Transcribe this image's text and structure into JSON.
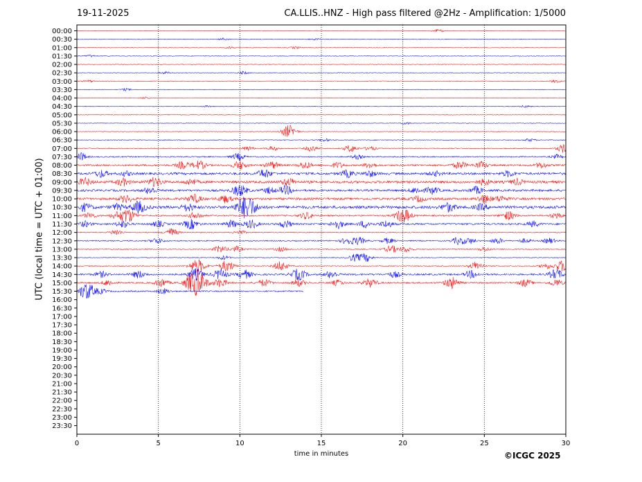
{
  "header": {
    "date": "19-11-2025",
    "title": "CA.LLIS..HNZ - High pass filtered @2Hz - Amplification: 1/5000"
  },
  "footer": {
    "copyright": "©ICGC 2025"
  },
  "chart_data": {
    "type": "line",
    "title": "CA.LLIS..HNZ - High pass filtered @2Hz - Amplification: 1/5000",
    "xlabel": "time in minutes",
    "ylabel": "UTC (local time = UTC + 01:00)",
    "xlim": [
      0,
      30
    ],
    "x_ticks": [
      0,
      5,
      10,
      15,
      20,
      25,
      30
    ],
    "grid": "vertical dotted lines at x ticks",
    "colors": {
      "odd_hour_trace": "#ff0000",
      "half_hour_trace": "#0000ff",
      "frame": "#000000"
    },
    "row_labels": [
      "00:00",
      "00:30",
      "01:00",
      "01:30",
      "02:00",
      "02:30",
      "03:00",
      "03:30",
      "04:00",
      "04:30",
      "05:00",
      "05:30",
      "06:00",
      "06:30",
      "07:00",
      "07:30",
      "08:00",
      "08:30",
      "09:00",
      "09:30",
      "10:00",
      "10:30",
      "11:00",
      "11:30",
      "12:00",
      "12:30",
      "13:00",
      "13:30",
      "14:00",
      "14:30",
      "15:00",
      "15:30",
      "16:00",
      "16:30",
      "17:00",
      "17:30",
      "18:00",
      "18:30",
      "19:00",
      "19:30",
      "20:00",
      "20:30",
      "21:00",
      "21:30",
      "22:00",
      "22:30",
      "23:00",
      "23:30"
    ],
    "traces": [
      {
        "row": "00:00",
        "color": "red",
        "end_min": 30,
        "noise": 0.4,
        "bursts": [
          [
            22.2,
            2
          ]
        ]
      },
      {
        "row": "00:30",
        "color": "blue",
        "end_min": 30,
        "noise": 0.4,
        "bursts": [
          [
            9,
            1.5
          ],
          [
            14.6,
            1.5
          ]
        ]
      },
      {
        "row": "01:00",
        "color": "red",
        "end_min": 30,
        "noise": 0.4,
        "bursts": [
          [
            9.4,
            1.5
          ],
          [
            13.4,
            1.5
          ]
        ]
      },
      {
        "row": "01:30",
        "color": "blue",
        "end_min": 30,
        "noise": 0.4,
        "bursts": [
          [
            0.8,
            1.5
          ]
        ]
      },
      {
        "row": "02:00",
        "color": "red",
        "end_min": 30,
        "noise": 0.4,
        "bursts": []
      },
      {
        "row": "02:30",
        "color": "blue",
        "end_min": 30,
        "noise": 0.4,
        "bursts": [
          [
            5.4,
            1.5
          ],
          [
            10.2,
            2
          ]
        ]
      },
      {
        "row": "03:00",
        "color": "red",
        "end_min": 30,
        "noise": 0.4,
        "bursts": [
          [
            0.7,
            1.5
          ],
          [
            29.4,
            2
          ]
        ]
      },
      {
        "row": "03:30",
        "color": "blue",
        "end_min": 30,
        "noise": 0.4,
        "bursts": [
          [
            3,
            1.5
          ]
        ]
      },
      {
        "row": "04:00",
        "color": "red",
        "end_min": 30,
        "noise": 0.4,
        "bursts": [
          [
            4.2,
            1.5
          ]
        ]
      },
      {
        "row": "04:30",
        "color": "blue",
        "end_min": 30,
        "noise": 0.4,
        "bursts": [
          [
            8,
            1
          ],
          [
            27.5,
            1.5
          ]
        ]
      },
      {
        "row": "05:00",
        "color": "red",
        "end_min": 30,
        "noise": 0.4,
        "bursts": []
      },
      {
        "row": "05:30",
        "color": "blue",
        "end_min": 30,
        "noise": 0.4,
        "bursts": [
          [
            20.2,
            1.5
          ]
        ]
      },
      {
        "row": "06:00",
        "color": "red",
        "end_min": 30,
        "noise": 0.4,
        "bursts": [
          [
            13,
            9
          ]
        ]
      },
      {
        "row": "06:30",
        "color": "blue",
        "end_min": 30,
        "noise": 0.5,
        "bursts": [
          [
            15.2,
            2
          ],
          [
            27.8,
            2
          ]
        ]
      },
      {
        "row": "07:00",
        "color": "red",
        "end_min": 30,
        "noise": 0.6,
        "bursts": [
          [
            10.5,
            3
          ],
          [
            12,
            3
          ],
          [
            14.4,
            4
          ],
          [
            16.8,
            5
          ],
          [
            18,
            3
          ],
          [
            29.9,
            6
          ]
        ]
      },
      {
        "row": "07:30",
        "color": "blue",
        "end_min": 30,
        "noise": 0.8,
        "bursts": [
          [
            0.2,
            6
          ],
          [
            9.9,
            5
          ],
          [
            17.2,
            3
          ],
          [
            29.5,
            3
          ]
        ]
      },
      {
        "row": "08:00",
        "color": "red",
        "end_min": 30,
        "noise": 1.2,
        "bursts": [
          [
            6.5,
            5
          ],
          [
            7.5,
            6
          ],
          [
            10,
            6
          ],
          [
            12,
            5
          ],
          [
            14,
            5
          ],
          [
            16,
            4
          ],
          [
            18,
            4
          ],
          [
            23.5,
            5
          ],
          [
            24.8,
            5
          ],
          [
            28.5,
            4
          ]
        ]
      },
      {
        "row": "08:30",
        "color": "blue",
        "end_min": 30,
        "noise": 1.6,
        "bursts": [
          [
            1.5,
            5
          ],
          [
            3,
            3
          ],
          [
            11.5,
            6
          ],
          [
            16.6,
            5
          ],
          [
            18,
            4
          ],
          [
            22,
            3
          ],
          [
            26.5,
            4
          ]
        ]
      },
      {
        "row": "09:00",
        "color": "red",
        "end_min": 30,
        "noise": 1.8,
        "bursts": [
          [
            0.5,
            5
          ],
          [
            2.8,
            5
          ],
          [
            4.8,
            6
          ],
          [
            7,
            4
          ],
          [
            13,
            5
          ],
          [
            25,
            4
          ],
          [
            27,
            4
          ]
        ]
      },
      {
        "row": "09:30",
        "color": "blue",
        "end_min": 30,
        "noise": 1.5,
        "bursts": [
          [
            4.5,
            5
          ],
          [
            10,
            8
          ],
          [
            11.8,
            4
          ],
          [
            12.8,
            6
          ],
          [
            20.8,
            4
          ],
          [
            21.8,
            5
          ],
          [
            24.5,
            5
          ]
        ]
      },
      {
        "row": "10:00",
        "color": "red",
        "end_min": 30,
        "noise": 1.6,
        "bursts": [
          [
            3,
            5
          ],
          [
            7.2,
            6
          ],
          [
            9.1,
            5
          ],
          [
            21,
            4
          ],
          [
            25,
            6
          ],
          [
            26,
            4
          ]
        ]
      },
      {
        "row": "10:30",
        "color": "blue",
        "end_min": 30,
        "noise": 2.0,
        "bursts": [
          [
            0.5,
            5
          ],
          [
            2.5,
            4
          ],
          [
            3.8,
            8
          ],
          [
            6.8,
            5
          ],
          [
            10.4,
            16
          ],
          [
            22.8,
            6
          ],
          [
            24.8,
            4
          ]
        ]
      },
      {
        "row": "11:00",
        "color": "red",
        "end_min": 30,
        "noise": 1.0,
        "bursts": [
          [
            0.8,
            4
          ],
          [
            2.4,
            4
          ],
          [
            3.1,
            10
          ],
          [
            7.3,
            5
          ],
          [
            14.1,
            5
          ],
          [
            19.9,
            7
          ],
          [
            20.2,
            5
          ],
          [
            26.5,
            6
          ],
          [
            29.4,
            4
          ]
        ]
      },
      {
        "row": "11:30",
        "color": "blue",
        "end_min": 30,
        "noise": 1.2,
        "bursts": [
          [
            0.5,
            4
          ],
          [
            2.8,
            5
          ],
          [
            5,
            4
          ],
          [
            7,
            7
          ],
          [
            9.5,
            5
          ],
          [
            10.7,
            6
          ],
          [
            12.8,
            5
          ],
          [
            16,
            6
          ],
          [
            17.7,
            5
          ],
          [
            19,
            5
          ],
          [
            28,
            4
          ]
        ]
      },
      {
        "row": "12:00",
        "color": "red",
        "end_min": 30,
        "noise": 0.6,
        "bursts": [
          [
            2.4,
            4
          ],
          [
            5.8,
            6
          ],
          [
            10,
            3
          ]
        ]
      },
      {
        "row": "12:30",
        "color": "blue",
        "end_min": 30,
        "noise": 0.8,
        "bursts": [
          [
            4.9,
            4
          ],
          [
            16.6,
            5
          ],
          [
            17.3,
            5
          ],
          [
            19.1,
            4
          ],
          [
            23.4,
            5
          ],
          [
            24.1,
            4
          ],
          [
            25.8,
            4
          ],
          [
            27.5,
            3
          ],
          [
            29,
            4
          ]
        ]
      },
      {
        "row": "13:00",
        "color": "red",
        "end_min": 30,
        "noise": 0.7,
        "bursts": [
          [
            8.8,
            5
          ],
          [
            9.8,
            4
          ],
          [
            12.5,
            3
          ],
          [
            19.3,
            5
          ],
          [
            20.2,
            4
          ],
          [
            25,
            3
          ]
        ]
      },
      {
        "row": "13:30",
        "color": "blue",
        "end_min": 30,
        "noise": 0.5,
        "bursts": [
          [
            9,
            3
          ],
          [
            17,
            5
          ],
          [
            17.7,
            6
          ]
        ]
      },
      {
        "row": "14:00",
        "color": "red",
        "end_min": 30,
        "noise": 0.6,
        "bursts": [
          [
            7.4,
            10
          ],
          [
            9.2,
            8
          ],
          [
            12.5,
            7
          ],
          [
            24.5,
            6
          ],
          [
            28.8,
            4
          ],
          [
            29.8,
            8
          ]
        ]
      },
      {
        "row": "14:30",
        "color": "blue",
        "end_min": 30,
        "noise": 1.2,
        "bursts": [
          [
            1.5,
            4
          ],
          [
            3.8,
            5
          ],
          [
            7.3,
            8
          ],
          [
            8.8,
            7
          ],
          [
            10.3,
            6
          ],
          [
            13.6,
            8
          ],
          [
            15.6,
            5
          ],
          [
            19.5,
            4
          ],
          [
            24.2,
            5
          ],
          [
            29.4,
            7
          ]
        ]
      },
      {
        "row": "15:00",
        "color": "red",
        "end_min": 30,
        "noise": 1.0,
        "bursts": [
          [
            1.9,
            4
          ],
          [
            5.2,
            6
          ],
          [
            7.3,
            18
          ],
          [
            8.8,
            6
          ],
          [
            11.5,
            5
          ],
          [
            13.6,
            5
          ],
          [
            16,
            4
          ],
          [
            18,
            6
          ],
          [
            23,
            8
          ],
          [
            27.5,
            5
          ],
          [
            29.4,
            5
          ]
        ]
      },
      {
        "row": "15:30",
        "color": "blue",
        "end_min": 13.9,
        "noise": 0.9,
        "bursts": [
          [
            0.6,
            12
          ],
          [
            1.5,
            3
          ],
          [
            5.3,
            4
          ]
        ]
      }
    ]
  }
}
